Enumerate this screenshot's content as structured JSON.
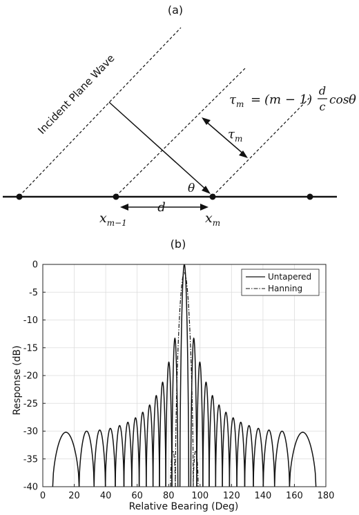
{
  "panel_a": {
    "label": "(a)",
    "wave_label": "Incident Plane Wave",
    "equation": {
      "lhs_symbol": "τ",
      "lhs_sub": "m",
      "equals": "=",
      "paren": "(m − 1)",
      "frac_num": "d",
      "frac_den": "c",
      "cos": "cos",
      "theta": "θ"
    },
    "tau_label": {
      "symbol": "τ",
      "sub": "m"
    },
    "theta_label": "θ",
    "x_prev": {
      "symbol": "x",
      "sub": "m−1"
    },
    "x_cur": {
      "symbol": "x",
      "sub": "m"
    },
    "d_label": "d"
  },
  "panel_b": {
    "label": "(b)"
  },
  "chart_data": {
    "type": "line",
    "xlabel": "Relative Bearing (Deg)",
    "ylabel": "Response (dB)",
    "xlim": [
      0,
      180
    ],
    "ylim": [
      -40,
      0
    ],
    "xticks": [
      "0",
      "20",
      "40",
      "60",
      "80",
      "100",
      "120",
      "140",
      "160",
      "180"
    ],
    "yticks": [
      "0",
      "-5",
      "-10",
      "-15",
      "-20",
      "-25",
      "-30",
      "-35",
      "-40"
    ],
    "grid": true,
    "legend_position": "top-right",
    "series": [
      {
        "name": "Untapered",
        "style": "solid",
        "main_lobe": {
          "peak_deg": 90,
          "peak_db": 0,
          "null_left_deg": 87.2,
          "null_right_deg": 92.8
        },
        "sidelobe_nulls_deg": [
          6.3,
          23.1,
          32.6,
          39.8,
          46.1,
          51.6,
          56.6,
          61.3,
          65.8,
          70.1,
          74.2,
          78.2,
          82.1,
          85.9,
          94.1,
          97.9,
          101.8,
          105.8,
          109.9,
          114.2,
          118.7,
          123.4,
          128.4,
          133.9,
          140.2,
          147.4,
          156.9,
          173.7
        ],
        "sidelobe_peaks_db": [
          -30.2,
          -30.0,
          -29.8,
          -29.5,
          -29.0,
          -28.4,
          -27.6,
          -26.6,
          -25.3,
          -23.6,
          -21.2,
          -17.6,
          -13.3,
          -13.3,
          -17.6,
          -21.2,
          -23.6,
          -25.3,
          -26.6,
          -27.6,
          -28.4,
          -29.0,
          -29.5,
          -29.8,
          -30.0,
          -30.2,
          -30.2
        ]
      },
      {
        "name": "Hanning",
        "style": "dash-dot",
        "main_lobe": {
          "peak_deg": 90,
          "peak_db": -1.5,
          "null_left_deg": 84.3,
          "null_right_deg": 95.7
        },
        "sidelobes": [
          {
            "left_deg": 81.2,
            "right_deg": 84.3,
            "peak_db": -33.5
          },
          {
            "left_deg": 95.7,
            "right_deg": 98.8,
            "peak_db": -33.5
          }
        ]
      }
    ]
  }
}
